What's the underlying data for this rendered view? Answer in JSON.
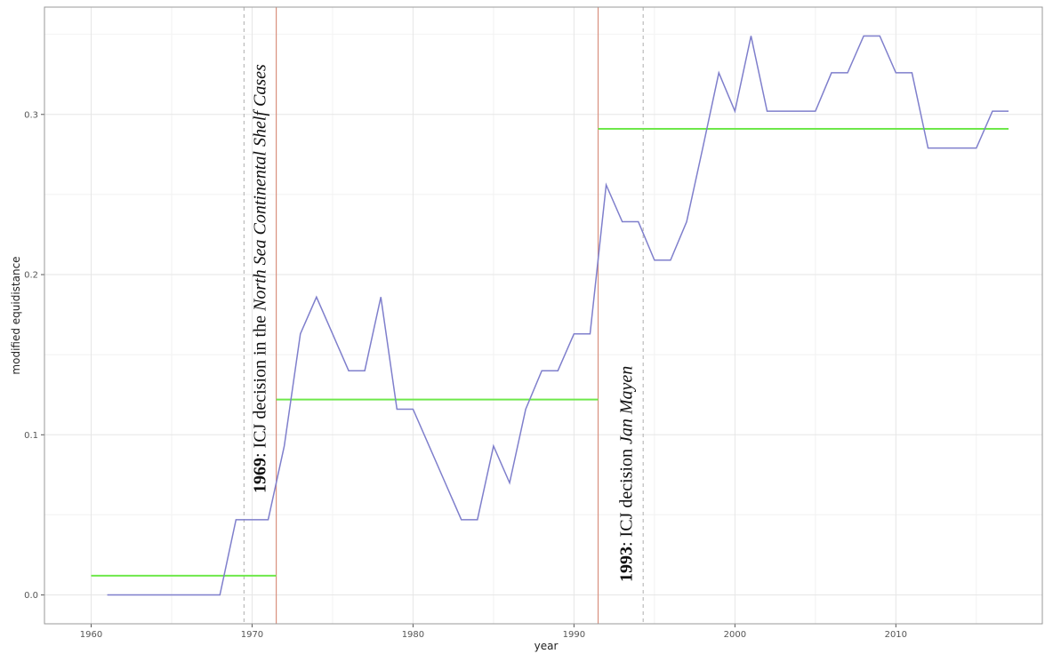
{
  "chart_data": {
    "type": "line",
    "x_label": "year",
    "y_label": "modified equidistance",
    "x": [
      1961,
      1962,
      1963,
      1964,
      1965,
      1966,
      1967,
      1968,
      1969,
      1970,
      1971,
      1972,
      1973,
      1974,
      1975,
      1976,
      1977,
      1978,
      1979,
      1980,
      1981,
      1982,
      1983,
      1984,
      1985,
      1986,
      1987,
      1988,
      1989,
      1990,
      1991,
      1992,
      1993,
      1994,
      1995,
      1996,
      1997,
      1998,
      1999,
      2000,
      2001,
      2002,
      2003,
      2004,
      2005,
      2006,
      2007,
      2008,
      2009,
      2010,
      2011,
      2012,
      2013,
      2014,
      2015,
      2016,
      2017
    ],
    "series": [
      {
        "color": "#7f7fcc",
        "values": [
          0,
          0,
          0,
          0,
          0,
          0,
          0,
          0,
          0.047,
          0.047,
          0.047,
          0.093,
          0.163,
          0.186,
          0.163,
          0.14,
          0.14,
          0.186,
          0.116,
          0.116,
          0.093,
          0.07,
          0.047,
          0.047,
          0.093,
          0.07,
          0.116,
          0.14,
          0.14,
          0.163,
          0.163,
          0.256,
          0.233,
          0.233,
          0.209,
          0.209,
          0.233,
          0.279,
          0.326,
          0.302,
          0.349,
          0.302,
          0.302,
          0.302,
          0.302,
          0.326,
          0.326,
          0.349,
          0.349,
          0.326,
          0.326,
          0.279,
          0.279,
          0.279,
          0.279,
          0.302,
          0.302
        ]
      }
    ],
    "segments": [
      {
        "x": [
          1960,
          1971.5
        ],
        "y": 0.012,
        "color": "#6ee84a"
      },
      {
        "x": [
          1971.5,
          1991.5
        ],
        "y": 0.122,
        "color": "#6ee84a"
      },
      {
        "x": [
          1991.5,
          2017
        ],
        "y": 0.291,
        "color": "#6ee84a"
      }
    ],
    "vlines": [
      {
        "x": 1969.5,
        "color": "#bbbbbb",
        "dashed": true
      },
      {
        "x": 1971.5,
        "color": "#d9907e",
        "dashed": false
      },
      {
        "x": 1991.5,
        "color": "#d9907e",
        "dashed": false
      },
      {
        "x": 1994.3,
        "color": "#bbbbbb",
        "dashed": true
      }
    ],
    "annotations": [
      {
        "bold": "1969",
        "text": ": ICJ decision in the ",
        "italic": "North Sea Continental Shelf Cases"
      },
      {
        "bold": "1993",
        "text": ": ICJ decision ",
        "italic": "Jan Mayen"
      }
    ],
    "xlim": [
      1957.1,
      2019.1
    ],
    "ylim": [
      -0.018,
      0.367
    ],
    "xticks": [
      1960,
      1970,
      1980,
      1990,
      2000,
      2010
    ],
    "yticks": [
      {
        "value": 0,
        "label": "0.0"
      },
      0.1,
      0.2,
      0.3
    ],
    "grid": true
  }
}
